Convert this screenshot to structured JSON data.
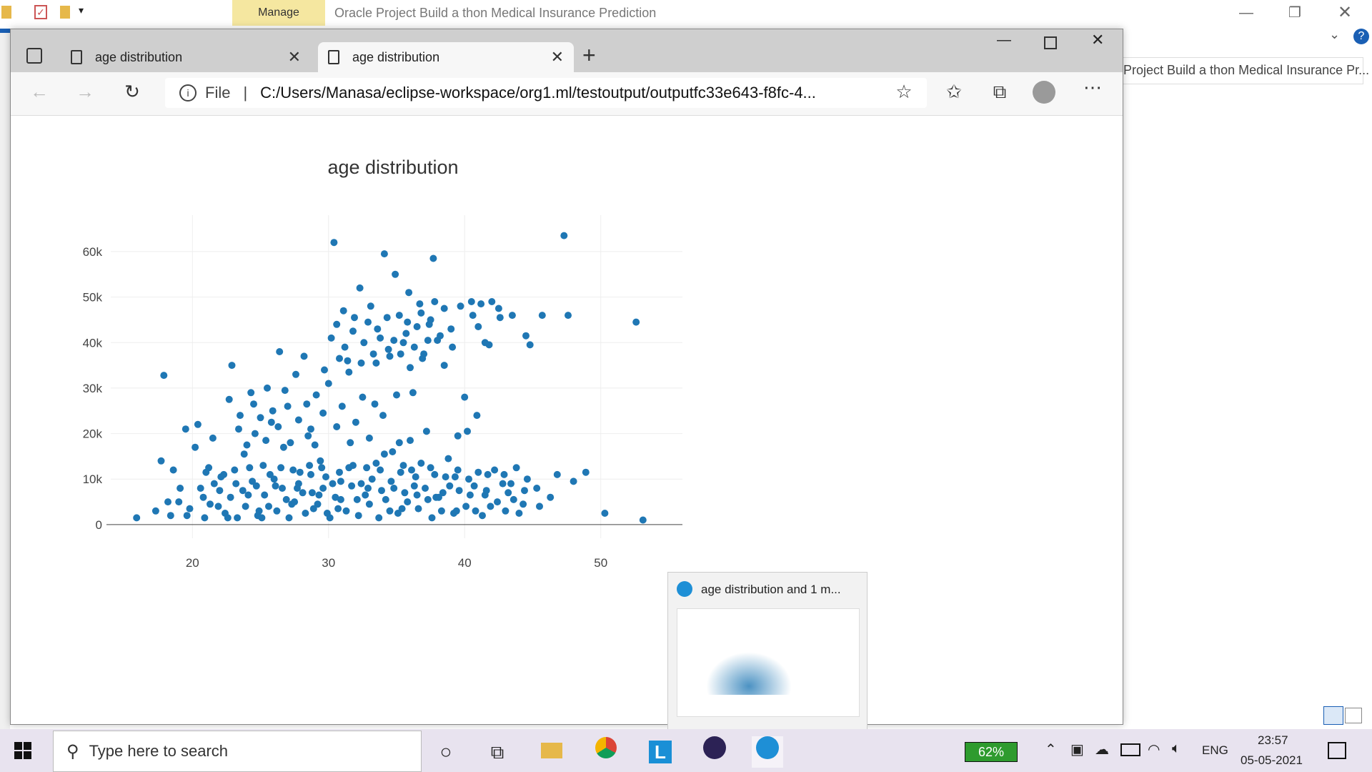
{
  "explorer": {
    "manage_label": "Manage",
    "title": "Oracle Project Build a thon Medical Insurance Prediction",
    "side_title": "Project Build a thon Medical Insurance Pr..."
  },
  "browser": {
    "tabs": [
      {
        "label": "age distribution"
      },
      {
        "label": "age distribution"
      }
    ],
    "address": {
      "scheme": "File",
      "url": "C:/Users/Manasa/eclipse-workspace/org1.ml/testoutput/outputfc33e643-f8fc-4..."
    }
  },
  "chart_data": {
    "type": "scatter",
    "title": "age distribution",
    "xlabel": "",
    "ylabel": "",
    "xlim": [
      14,
      56
    ],
    "ylim": [
      -3000,
      68000
    ],
    "x_ticks": [
      "20",
      "30",
      "40",
      "50"
    ],
    "y_ticks": [
      "0",
      "10k",
      "20k",
      "30k",
      "40k",
      "50k",
      "60k"
    ],
    "grid": true,
    "color": "#1f77b4",
    "points": [
      [
        15.9,
        1500
      ],
      [
        17.3,
        3000
      ],
      [
        17.7,
        14000
      ],
      [
        17.9,
        32800
      ],
      [
        18.2,
        5000
      ],
      [
        18.6,
        12000
      ],
      [
        19.1,
        8000
      ],
      [
        19.5,
        21000
      ],
      [
        19.8,
        3500
      ],
      [
        20.2,
        17000
      ],
      [
        20.4,
        22000
      ],
      [
        20.8,
        6000
      ],
      [
        21.2,
        12500
      ],
      [
        21.5,
        19000
      ],
      [
        21.9,
        4000
      ],
      [
        22.3,
        11000
      ],
      [
        22.7,
        27500
      ],
      [
        22.9,
        35000
      ],
      [
        23.2,
        9000
      ],
      [
        23.5,
        24000
      ],
      [
        23.8,
        15500
      ],
      [
        24.1,
        6500
      ],
      [
        24.3,
        29000
      ],
      [
        24.6,
        20000
      ],
      [
        24.9,
        3000
      ],
      [
        25.2,
        13000
      ],
      [
        25.5,
        30000
      ],
      [
        25.8,
        22500
      ],
      [
        26.1,
        8500
      ],
      [
        26.4,
        38000
      ],
      [
        26.7,
        17000
      ],
      [
        27.0,
        26000
      ],
      [
        27.3,
        4500
      ],
      [
        27.6,
        33000
      ],
      [
        27.9,
        11500
      ],
      [
        28.2,
        37000
      ],
      [
        28.5,
        19500
      ],
      [
        28.8,
        7000
      ],
      [
        29.1,
        28500
      ],
      [
        29.4,
        14000
      ],
      [
        29.7,
        34000
      ],
      [
        29.9,
        2500
      ],
      [
        30.2,
        41000
      ],
      [
        30.4,
        62000
      ],
      [
        30.6,
        44000
      ],
      [
        30.9,
        9500
      ],
      [
        31.1,
        47000
      ],
      [
        31.4,
        36000
      ],
      [
        31.6,
        18000
      ],
      [
        31.9,
        45500
      ],
      [
        32.1,
        5500
      ],
      [
        32.3,
        52000
      ],
      [
        32.6,
        40000
      ],
      [
        32.8,
        12500
      ],
      [
        33.1,
        48000
      ],
      [
        33.4,
        26500
      ],
      [
        33.6,
        43000
      ],
      [
        33.9,
        7500
      ],
      [
        34.1,
        59500
      ],
      [
        34.4,
        38500
      ],
      [
        34.7,
        16000
      ],
      [
        34.9,
        55000
      ],
      [
        35.2,
        46000
      ],
      [
        35.4,
        3500
      ],
      [
        35.7,
        42000
      ],
      [
        35.9,
        51000
      ],
      [
        36.2,
        29000
      ],
      [
        36.4,
        10500
      ],
      [
        36.7,
        48500
      ],
      [
        36.9,
        36500
      ],
      [
        37.2,
        20500
      ],
      [
        37.4,
        44000
      ],
      [
        37.7,
        58500
      ],
      [
        37.9,
        6000
      ],
      [
        38.2,
        41500
      ],
      [
        38.5,
        47500
      ],
      [
        38.8,
        14500
      ],
      [
        39.1,
        39000
      ],
      [
        39.4,
        3000
      ],
      [
        39.7,
        48000
      ],
      [
        40.0,
        28000
      ],
      [
        40.3,
        10000
      ],
      [
        40.6,
        46000
      ],
      [
        40.9,
        24000
      ],
      [
        41.2,
        48500
      ],
      [
        41.5,
        6500
      ],
      [
        41.8,
        39500
      ],
      [
        42.2,
        12000
      ],
      [
        42.6,
        45500
      ],
      [
        43.0,
        3000
      ],
      [
        43.4,
        9000
      ],
      [
        43.8,
        12500
      ],
      [
        44.3,
        4500
      ],
      [
        44.8,
        39500
      ],
      [
        45.3,
        8000
      ],
      [
        45.7,
        46000
      ],
      [
        46.3,
        6000
      ],
      [
        46.8,
        11000
      ],
      [
        47.3,
        63500
      ],
      [
        47.6,
        46000
      ],
      [
        48.0,
        9500
      ],
      [
        48.9,
        11500
      ],
      [
        50.3,
        2500
      ],
      [
        52.6,
        44500
      ],
      [
        53.1,
        1000
      ],
      [
        19.6,
        2000
      ],
      [
        20.9,
        1500
      ],
      [
        21.6,
        9000
      ],
      [
        22.4,
        2500
      ],
      [
        22.8,
        6000
      ],
      [
        23.3,
        1500
      ],
      [
        23.9,
        4000
      ],
      [
        24.4,
        9500
      ],
      [
        24.8,
        2000
      ],
      [
        25.3,
        6500
      ],
      [
        25.7,
        11000
      ],
      [
        26.2,
        3000
      ],
      [
        26.6,
        8000
      ],
      [
        27.1,
        1500
      ],
      [
        27.5,
        5000
      ],
      [
        27.8,
        9000
      ],
      [
        28.3,
        2500
      ],
      [
        28.7,
        11000
      ],
      [
        29.2,
        4500
      ],
      [
        29.6,
        8000
      ],
      [
        30.1,
        1500
      ],
      [
        30.5,
        6000
      ],
      [
        30.8,
        11500
      ],
      [
        31.3,
        3000
      ],
      [
        31.7,
        8500
      ],
      [
        32.2,
        2000
      ],
      [
        32.7,
        6500
      ],
      [
        33.2,
        10000
      ],
      [
        33.7,
        1500
      ],
      [
        34.2,
        5500
      ],
      [
        34.6,
        9500
      ],
      [
        35.1,
        2500
      ],
      [
        35.6,
        7000
      ],
      [
        36.1,
        12000
      ],
      [
        36.6,
        3500
      ],
      [
        37.1,
        8000
      ],
      [
        37.6,
        1500
      ],
      [
        38.1,
        6000
      ],
      [
        38.6,
        10500
      ],
      [
        39.2,
        2500
      ],
      [
        39.6,
        7500
      ],
      [
        40.1,
        4000
      ],
      [
        40.7,
        8500
      ],
      [
        41.3,
        2000
      ],
      [
        41.7,
        11000
      ],
      [
        42.4,
        5000
      ],
      [
        43.2,
        7000
      ],
      [
        44.0,
        2500
      ],
      [
        44.6,
        10000
      ],
      [
        45.5,
        4000
      ],
      [
        20.6,
        8000
      ],
      [
        21.3,
        4500
      ],
      [
        22.1,
        10500
      ],
      [
        22.6,
        1500
      ],
      [
        23.7,
        7500
      ],
      [
        24.2,
        12500
      ],
      [
        25.1,
        1500
      ],
      [
        26.0,
        10000
      ],
      [
        26.9,
        5500
      ],
      [
        27.4,
        12000
      ],
      [
        28.1,
        7000
      ],
      [
        28.9,
        3500
      ],
      [
        29.5,
        12500
      ],
      [
        30.3,
        9000
      ],
      [
        30.7,
        3500
      ],
      [
        31.5,
        12500
      ],
      [
        32.4,
        9000
      ],
      [
        33.0,
        4500
      ],
      [
        33.8,
        12000
      ],
      [
        34.5,
        3000
      ],
      [
        35.3,
        11500
      ],
      [
        35.8,
        5000
      ],
      [
        36.3,
        8500
      ],
      [
        36.8,
        13500
      ],
      [
        37.3,
        5500
      ],
      [
        37.8,
        11000
      ],
      [
        38.3,
        3000
      ],
      [
        38.9,
        8500
      ],
      [
        39.5,
        12000
      ],
      [
        40.4,
        6500
      ],
      [
        41.0,
        11500
      ],
      [
        41.9,
        4000
      ],
      [
        42.8,
        9000
      ],
      [
        43.6,
        5500
      ],
      [
        19.0,
        5000
      ],
      [
        18.4,
        2000
      ],
      [
        21.0,
        11500
      ],
      [
        22.0,
        7500
      ],
      [
        23.1,
        12000
      ],
      [
        24.7,
        8500
      ],
      [
        25.6,
        4000
      ],
      [
        26.5,
        12500
      ],
      [
        27.7,
        8000
      ],
      [
        28.6,
        13000
      ],
      [
        29.3,
        6500
      ],
      [
        29.8,
        10500
      ],
      [
        30.9,
        5500
      ],
      [
        31.8,
        13000
      ],
      [
        32.9,
        8000
      ],
      [
        33.5,
        13500
      ],
      [
        34.8,
        8000
      ],
      [
        35.5,
        13000
      ],
      [
        36.5,
        6500
      ],
      [
        37.5,
        12500
      ],
      [
        38.4,
        7000
      ],
      [
        39.3,
        10500
      ],
      [
        40.8,
        3000
      ],
      [
        41.6,
        7500
      ],
      [
        42.9,
        11000
      ],
      [
        44.4,
        7500
      ],
      [
        23.4,
        21000
      ],
      [
        24.0,
        17500
      ],
      [
        24.5,
        26500
      ],
      [
        25.0,
        23500
      ],
      [
        25.4,
        18500
      ],
      [
        25.9,
        25000
      ],
      [
        26.3,
        21500
      ],
      [
        26.8,
        29500
      ],
      [
        27.2,
        18000
      ],
      [
        27.8,
        23000
      ],
      [
        28.4,
        26500
      ],
      [
        28.7,
        21000
      ],
      [
        29.0,
        17500
      ],
      [
        29.6,
        24500
      ],
      [
        30.0,
        31000
      ],
      [
        30.6,
        21500
      ],
      [
        31.0,
        26000
      ],
      [
        31.5,
        33500
      ],
      [
        32.0,
        22500
      ],
      [
        32.5,
        28000
      ],
      [
        33.0,
        19000
      ],
      [
        33.5,
        35500
      ],
      [
        34.0,
        24000
      ],
      [
        34.5,
        37000
      ],
      [
        35.0,
        28500
      ],
      [
        35.5,
        40000
      ],
      [
        36.0,
        34500
      ],
      [
        36.5,
        43500
      ],
      [
        37.0,
        37500
      ],
      [
        37.5,
        45000
      ],
      [
        38.0,
        40500
      ],
      [
        38.5,
        35000
      ],
      [
        39.0,
        43000
      ],
      [
        30.8,
        36500
      ],
      [
        31.2,
        39000
      ],
      [
        31.8,
        42500
      ],
      [
        32.4,
        35500
      ],
      [
        32.9,
        44500
      ],
      [
        33.3,
        37500
      ],
      [
        33.8,
        41000
      ],
      [
        34.3,
        45500
      ],
      [
        34.8,
        40500
      ],
      [
        35.3,
        37500
      ],
      [
        35.8,
        44500
      ],
      [
        36.3,
        39000
      ],
      [
        36.8,
        46500
      ],
      [
        37.3,
        40500
      ],
      [
        37.8,
        49000
      ],
      [
        40.5,
        49000
      ],
      [
        41.0,
        43500
      ],
      [
        41.5,
        40000
      ],
      [
        42.0,
        49000
      ],
      [
        42.5,
        47500
      ],
      [
        43.5,
        46000
      ],
      [
        44.5,
        41500
      ],
      [
        39.5,
        19500
      ],
      [
        40.2,
        20500
      ],
      [
        36.0,
        18500
      ],
      [
        35.2,
        18000
      ],
      [
        34.1,
        15500
      ]
    ]
  },
  "thumbnail": {
    "title": "age distribution and 1 m..."
  },
  "taskbar": {
    "search_placeholder": "Type here to search",
    "battery": "62%",
    "language": "ENG",
    "time": "23:57",
    "date": "05-05-2021"
  }
}
